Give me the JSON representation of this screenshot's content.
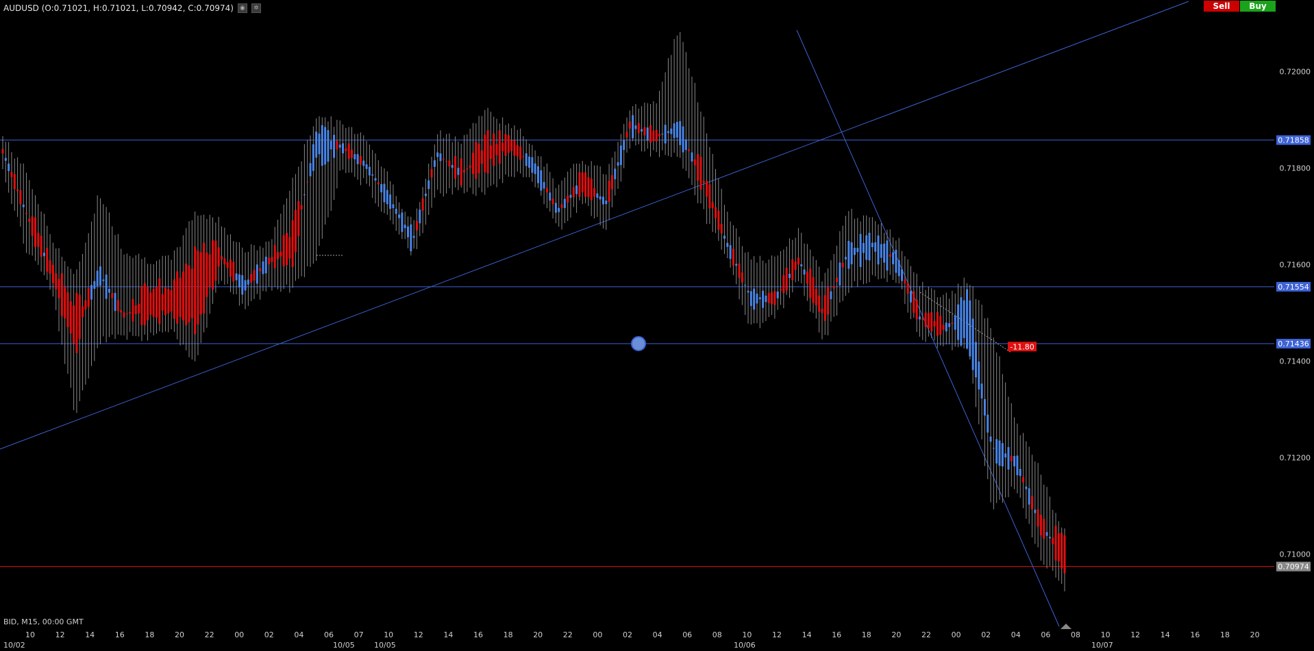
{
  "header": {
    "symbol_info": "AUDUSD (O:0.71021, H:0.71021, L:0.70942, C:0.70974)",
    "icons": [
      "settings-icon",
      "gear-icon"
    ]
  },
  "trade": {
    "sell_label": "Sell",
    "buy_label": "Buy",
    "sell_color": "#cc0000",
    "buy_color": "#1aa31a"
  },
  "footer": {
    "info": "BID, M15, 00:00 GMT"
  },
  "colors": {
    "bull": "#4a86e8",
    "bear": "#e01010",
    "wick": "#8a8a8a",
    "line": "#3d63d6",
    "current_price": "#e01010"
  },
  "chart_data": {
    "type": "candlestick",
    "ylim": [
      0.7085,
      0.7212
    ],
    "y_ticks": [
      "0.72000",
      "0.71800",
      "0.71600",
      "0.71400",
      "0.71200",
      "0.71000"
    ],
    "x_ticks": [
      "10",
      "12",
      "14",
      "16",
      "18",
      "20",
      "22",
      "00",
      "02",
      "04",
      "06",
      "07",
      "10",
      "12",
      "14",
      "16",
      "18",
      "20",
      "22",
      "00",
      "02",
      "04",
      "06",
      "08",
      "10",
      "12",
      "14",
      "16",
      "18",
      "20",
      "22",
      "00",
      "02",
      "04",
      "06",
      "08",
      "10",
      "12",
      "14",
      "16",
      "18",
      "20"
    ],
    "date_labels": [
      "10/02",
      "10/05",
      "10/05",
      "10/06",
      "10/07"
    ],
    "horizontal_lines": [
      {
        "price": 0.71858,
        "label": "0.71858"
      },
      {
        "price": 0.71554,
        "label": "0.71554"
      },
      {
        "price": 0.71436,
        "label": "0.71436"
      }
    ],
    "current_price": {
      "price": 0.70974,
      "label": "0.70974"
    },
    "annotation": {
      "text": "-11.80",
      "price": 0.7143
    },
    "anchors": [
      [
        0.7184,
        0.71855,
        0.718,
        0.7183
      ],
      [
        0.7172,
        0.7178,
        0.7164,
        0.7169
      ],
      [
        0.716,
        0.7165,
        0.7156,
        0.7158
      ],
      [
        0.7152,
        0.7156,
        0.713,
        0.7142
      ],
      [
        0.7156,
        0.7174,
        0.7145,
        0.716
      ],
      [
        0.715,
        0.7162,
        0.7146,
        0.7149
      ],
      [
        0.7156,
        0.716,
        0.7146,
        0.7148
      ],
      [
        0.7155,
        0.716,
        0.7148,
        0.715
      ],
      [
        0.7162,
        0.717,
        0.714,
        0.7147
      ],
      [
        0.7164,
        0.7168,
        0.7158,
        0.716
      ],
      [
        0.7155,
        0.7162,
        0.7152,
        0.7156
      ],
      [
        0.716,
        0.7163,
        0.7156,
        0.7161
      ],
      [
        0.7168,
        0.7176,
        0.7156,
        0.716
      ],
      [
        0.7182,
        0.719,
        0.7162,
        0.7188
      ],
      [
        0.7184,
        0.7188,
        0.718,
        0.7185
      ],
      [
        0.7182,
        0.7186,
        0.7178,
        0.718
      ],
      [
        0.7172,
        0.7177,
        0.717,
        0.7175
      ],
      [
        0.7164,
        0.7167,
        0.7163,
        0.7166
      ],
      [
        0.7184,
        0.7186,
        0.7176,
        0.7182
      ],
      [
        0.718,
        0.7185,
        0.7176,
        0.7178
      ],
      [
        0.7186,
        0.7191,
        0.7176,
        0.718
      ],
      [
        0.7186,
        0.7188,
        0.718,
        0.7184
      ],
      [
        0.718,
        0.7184,
        0.7178,
        0.7181
      ],
      [
        0.717,
        0.7175,
        0.7168,
        0.7172
      ],
      [
        0.7178,
        0.7181,
        0.7174,
        0.7176
      ],
      [
        0.7174,
        0.7178,
        0.7168,
        0.7172
      ],
      [
        0.7188,
        0.7192,
        0.7186,
        0.719
      ],
      [
        0.7187,
        0.7192,
        0.7184,
        0.7186
      ],
      [
        0.7186,
        0.7208,
        0.7184,
        0.719
      ],
      [
        0.718,
        0.719,
        0.7172,
        0.7176
      ],
      [
        0.7165,
        0.717,
        0.7162,
        0.7164
      ],
      [
        0.7152,
        0.716,
        0.7148,
        0.7154
      ],
      [
        0.7154,
        0.716,
        0.715,
        0.7152
      ],
      [
        0.7162,
        0.7166,
        0.7158,
        0.716
      ],
      [
        0.7152,
        0.7156,
        0.7145,
        0.7148
      ],
      [
        0.716,
        0.717,
        0.7156,
        0.7164
      ],
      [
        0.7162,
        0.7168,
        0.7158,
        0.7166
      ],
      [
        0.716,
        0.7165,
        0.7158,
        0.7162
      ],
      [
        0.715,
        0.7155,
        0.7146,
        0.7148
      ],
      [
        0.7148,
        0.7152,
        0.7144,
        0.7146
      ],
      [
        0.7144,
        0.7156,
        0.7143,
        0.7154
      ],
      [
        0.7121,
        0.7145,
        0.711,
        0.7123
      ],
      [
        0.7118,
        0.7126,
        0.7115,
        0.712
      ],
      [
        0.7107,
        0.7116,
        0.71,
        0.7105
      ],
      [
        0.71021,
        0.71021,
        0.70942,
        0.70974
      ]
    ]
  }
}
